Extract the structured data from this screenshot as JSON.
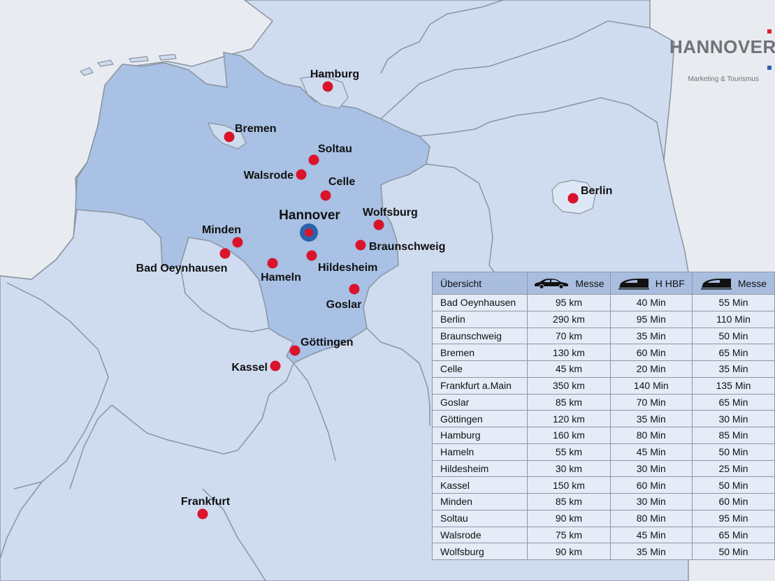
{
  "logo": {
    "title": "HANNOVER",
    "subtitle": "Marketing & Tourismus",
    "accent_red": "#d9232e",
    "accent_blue": "#2a63ad"
  },
  "colors": {
    "sea": "#e8ebf0",
    "land": "#cfdcf0",
    "lower_saxony": "#a8c1e4",
    "border": "#8a93a0",
    "city_dot": "#d9142b",
    "hub_ring": "#2a63ad"
  },
  "map": {
    "hub": {
      "name": "Hannover",
      "icon": "hub-marker-icon"
    },
    "cities": [
      {
        "id": "hamburg",
        "name": "Hamburg"
      },
      {
        "id": "bremen",
        "name": "Bremen"
      },
      {
        "id": "soltau",
        "name": "Soltau"
      },
      {
        "id": "walsrode",
        "name": "Walsrode"
      },
      {
        "id": "celle",
        "name": "Celle"
      },
      {
        "id": "wolfsburg",
        "name": "Wolfsburg"
      },
      {
        "id": "minden",
        "name": "Minden"
      },
      {
        "id": "braunschweig",
        "name": "Braunschweig"
      },
      {
        "id": "badoeynhausen",
        "name": "Bad Oeynhausen"
      },
      {
        "id": "hameln",
        "name": "Hameln"
      },
      {
        "id": "hildesheim",
        "name": "Hildesheim"
      },
      {
        "id": "goslar",
        "name": "Goslar"
      },
      {
        "id": "goettingen",
        "name": "Göttingen"
      },
      {
        "id": "kassel",
        "name": "Kassel"
      },
      {
        "id": "berlin",
        "name": "Berlin"
      },
      {
        "id": "frankfurt",
        "name": "Frankfurt"
      }
    ]
  },
  "table": {
    "headers": {
      "name": "Übersicht",
      "car": "Messe",
      "train_hbf": "H HBF",
      "train_messe": "Messe"
    },
    "header_icons": {
      "car": "car-icon",
      "train_hbf": "train-icon",
      "train_messe": "train-icon"
    },
    "rows": [
      {
        "city": "Bad Oeynhausen",
        "car": "95 km",
        "train_hbf": "40 Min",
        "train_messe": "55 Min"
      },
      {
        "city": "Berlin",
        "car": "290 km",
        "train_hbf": "95 Min",
        "train_messe": "110 Min"
      },
      {
        "city": "Braunschweig",
        "car": "70 km",
        "train_hbf": "35 Min",
        "train_messe": "50 Min"
      },
      {
        "city": "Bremen",
        "car": "130 km",
        "train_hbf": "60 Min",
        "train_messe": "65 Min"
      },
      {
        "city": "Celle",
        "car": "45 km",
        "train_hbf": "20 Min",
        "train_messe": "35 Min"
      },
      {
        "city": "Frankfurt a.Main",
        "car": "350 km",
        "train_hbf": "140 Min",
        "train_messe": "135 Min"
      },
      {
        "city": "Goslar",
        "car": "85 km",
        "train_hbf": "70 Min",
        "train_messe": "65 Min"
      },
      {
        "city": "Göttingen",
        "car": "120 km",
        "train_hbf": "35 Min",
        "train_messe": "30 Min"
      },
      {
        "city": "Hamburg",
        "car": "160 km",
        "train_hbf": "80 Min",
        "train_messe": "85 Min"
      },
      {
        "city": "Hameln",
        "car": "55 km",
        "train_hbf": "45 Min",
        "train_messe": "50 Min"
      },
      {
        "city": "Hildesheim",
        "car": "30 km",
        "train_hbf": "30 Min",
        "train_messe": "25 Min"
      },
      {
        "city": "Kassel",
        "car": "150 km",
        "train_hbf": "60 Min",
        "train_messe": "50 Min"
      },
      {
        "city": "Minden",
        "car": "85 km",
        "train_hbf": "30 Min",
        "train_messe": "60 Min"
      },
      {
        "city": "Soltau",
        "car": "90 km",
        "train_hbf": "80 Min",
        "train_messe": "95 Min"
      },
      {
        "city": "Walsrode",
        "car": "75 km",
        "train_hbf": "45 Min",
        "train_messe": "65 Min"
      },
      {
        "city": "Wolfsburg",
        "car": "90 km",
        "train_hbf": "35 Min",
        "train_messe": "50 Min"
      }
    ]
  }
}
